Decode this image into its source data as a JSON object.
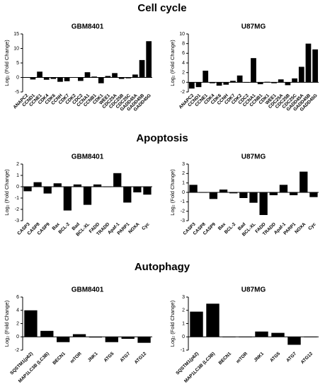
{
  "section_titles": [
    "Cell cycle",
    "Apoptosis",
    "Autophagy"
  ],
  "chart_data": [
    {
      "type": "bar",
      "title": "GBM8401",
      "y_label": "Log₂ (Fold Change)",
      "color": "#000000",
      "categories": [
        "ANAPC2",
        "CCND1",
        "CCNE1",
        "CDK4",
        "CDK6",
        "CCNH",
        "CDK7",
        "CDK2",
        "CDC2",
        "CCNA1",
        "CCNB1",
        "CDK1",
        "WEE1",
        "CDC25A",
        "CDC25B",
        "CDC25C",
        "GADD45A",
        "GADD45B",
        "GADD45G"
      ],
      "values": [
        0.1,
        -0.7,
        2,
        -0.8,
        -0.5,
        -1.5,
        -1.3,
        0.1,
        -1.2,
        1.8,
        0.3,
        -2,
        0.5,
        1.5,
        -0.5,
        -0.3,
        1,
        6,
        12.5
      ],
      "ylim": [
        -5,
        15
      ],
      "yticks": [
        -5,
        0,
        5,
        10,
        15
      ]
    },
    {
      "type": "bar",
      "title": "U87MG",
      "y_label": "Log₂ (Fold Change)",
      "color": "#000000",
      "categories": [
        "ANAPC2",
        "CCND1",
        "CCNE1",
        "CDK4",
        "CDK6",
        "CCNH",
        "CDK7",
        "CDK2",
        "CDC2",
        "CCNA1",
        "CCNB1",
        "CDK1",
        "WEE1",
        "CDC25A",
        "CDC25B",
        "CDC25C",
        "GADD45A",
        "GADD45B",
        "GADD45G"
      ],
      "values": [
        -1.3,
        -1,
        2.4,
        -0.2,
        -0.7,
        -0.5,
        0.3,
        1.4,
        0,
        5,
        -0.4,
        0.1,
        -0.2,
        0.6,
        -0.6,
        0.8,
        3.2,
        8,
        6.8
      ],
      "ylim": [
        -2,
        10
      ],
      "yticks": [
        -2,
        0,
        2,
        4,
        6,
        8,
        10
      ]
    },
    {
      "type": "bar",
      "title": "GBM8401",
      "y_label": "Log₂ (Fold Change)",
      "color": "#000000",
      "categories": [
        "CASP3",
        "CASP8",
        "CASP9",
        "Bax",
        "BCL-2",
        "Bad",
        "BCL-XL",
        "FADD",
        "TRADD",
        "Apaf-1",
        "PARP1",
        "NOXA",
        "Cyc"
      ],
      "values": [
        -0.4,
        0.4,
        -0.6,
        0.3,
        -2.1,
        0.2,
        -1.6,
        0.2,
        0,
        1.2,
        -1.4,
        -0.5,
        -0.7
      ],
      "ylim": [
        -3,
        2
      ],
      "yticks": [
        -3,
        -2,
        -1,
        0,
        1,
        2
      ]
    },
    {
      "type": "bar",
      "title": "U87MG",
      "y_label": "Log₂ (Fold Change)",
      "color": "#000000",
      "categories": [
        "CASP3",
        "CASP8",
        "CASP9",
        "Bax",
        "BCL-2",
        "Bad",
        "BCL-XL",
        "FADD",
        "TRADD",
        "Apaf-1",
        "PARP1",
        "NOXA",
        "Cyc"
      ],
      "values": [
        0.8,
        0,
        -0.7,
        0.3,
        -0.1,
        -0.6,
        -1.1,
        -2.4,
        -0.3,
        0.8,
        -0.3,
        2.2,
        -0.5
      ],
      "ylim": [
        -3,
        3
      ],
      "yticks": [
        -3,
        -2,
        -1,
        0,
        1,
        2,
        3
      ]
    },
    {
      "type": "bar",
      "title": "GBM8401",
      "y_label": "Log₂ (Fold Change)",
      "color": "#000000",
      "categories": [
        "SQSTM1(p62)",
        "MAP1LC3B (LC3B)",
        "BECN1",
        "mTOR",
        "JNK1",
        "ATG5",
        "ATG7",
        "ATG12"
      ],
      "values": [
        4,
        0.9,
        -0.8,
        0.4,
        -0.1,
        -0.8,
        -0.3,
        -0.9
      ],
      "ylim": [
        -2,
        6
      ],
      "yticks": [
        -2,
        0,
        2,
        4,
        6
      ]
    },
    {
      "type": "bar",
      "title": "U87MG",
      "y_label": "Log₂ (Fold Change)",
      "color": "#000000",
      "categories": [
        "SQSTM1(p62)",
        "MAP1LC3B (LC3B)",
        "BECN1",
        "mTOR",
        "JNK1",
        "ATG5",
        "ATG7",
        "ATG12"
      ],
      "values": [
        1.9,
        2.5,
        0,
        0,
        0.4,
        0.3,
        -0.6,
        0
      ],
      "ylim": [
        -1,
        3
      ],
      "yticks": [
        -1,
        0,
        1,
        2,
        3
      ]
    }
  ]
}
